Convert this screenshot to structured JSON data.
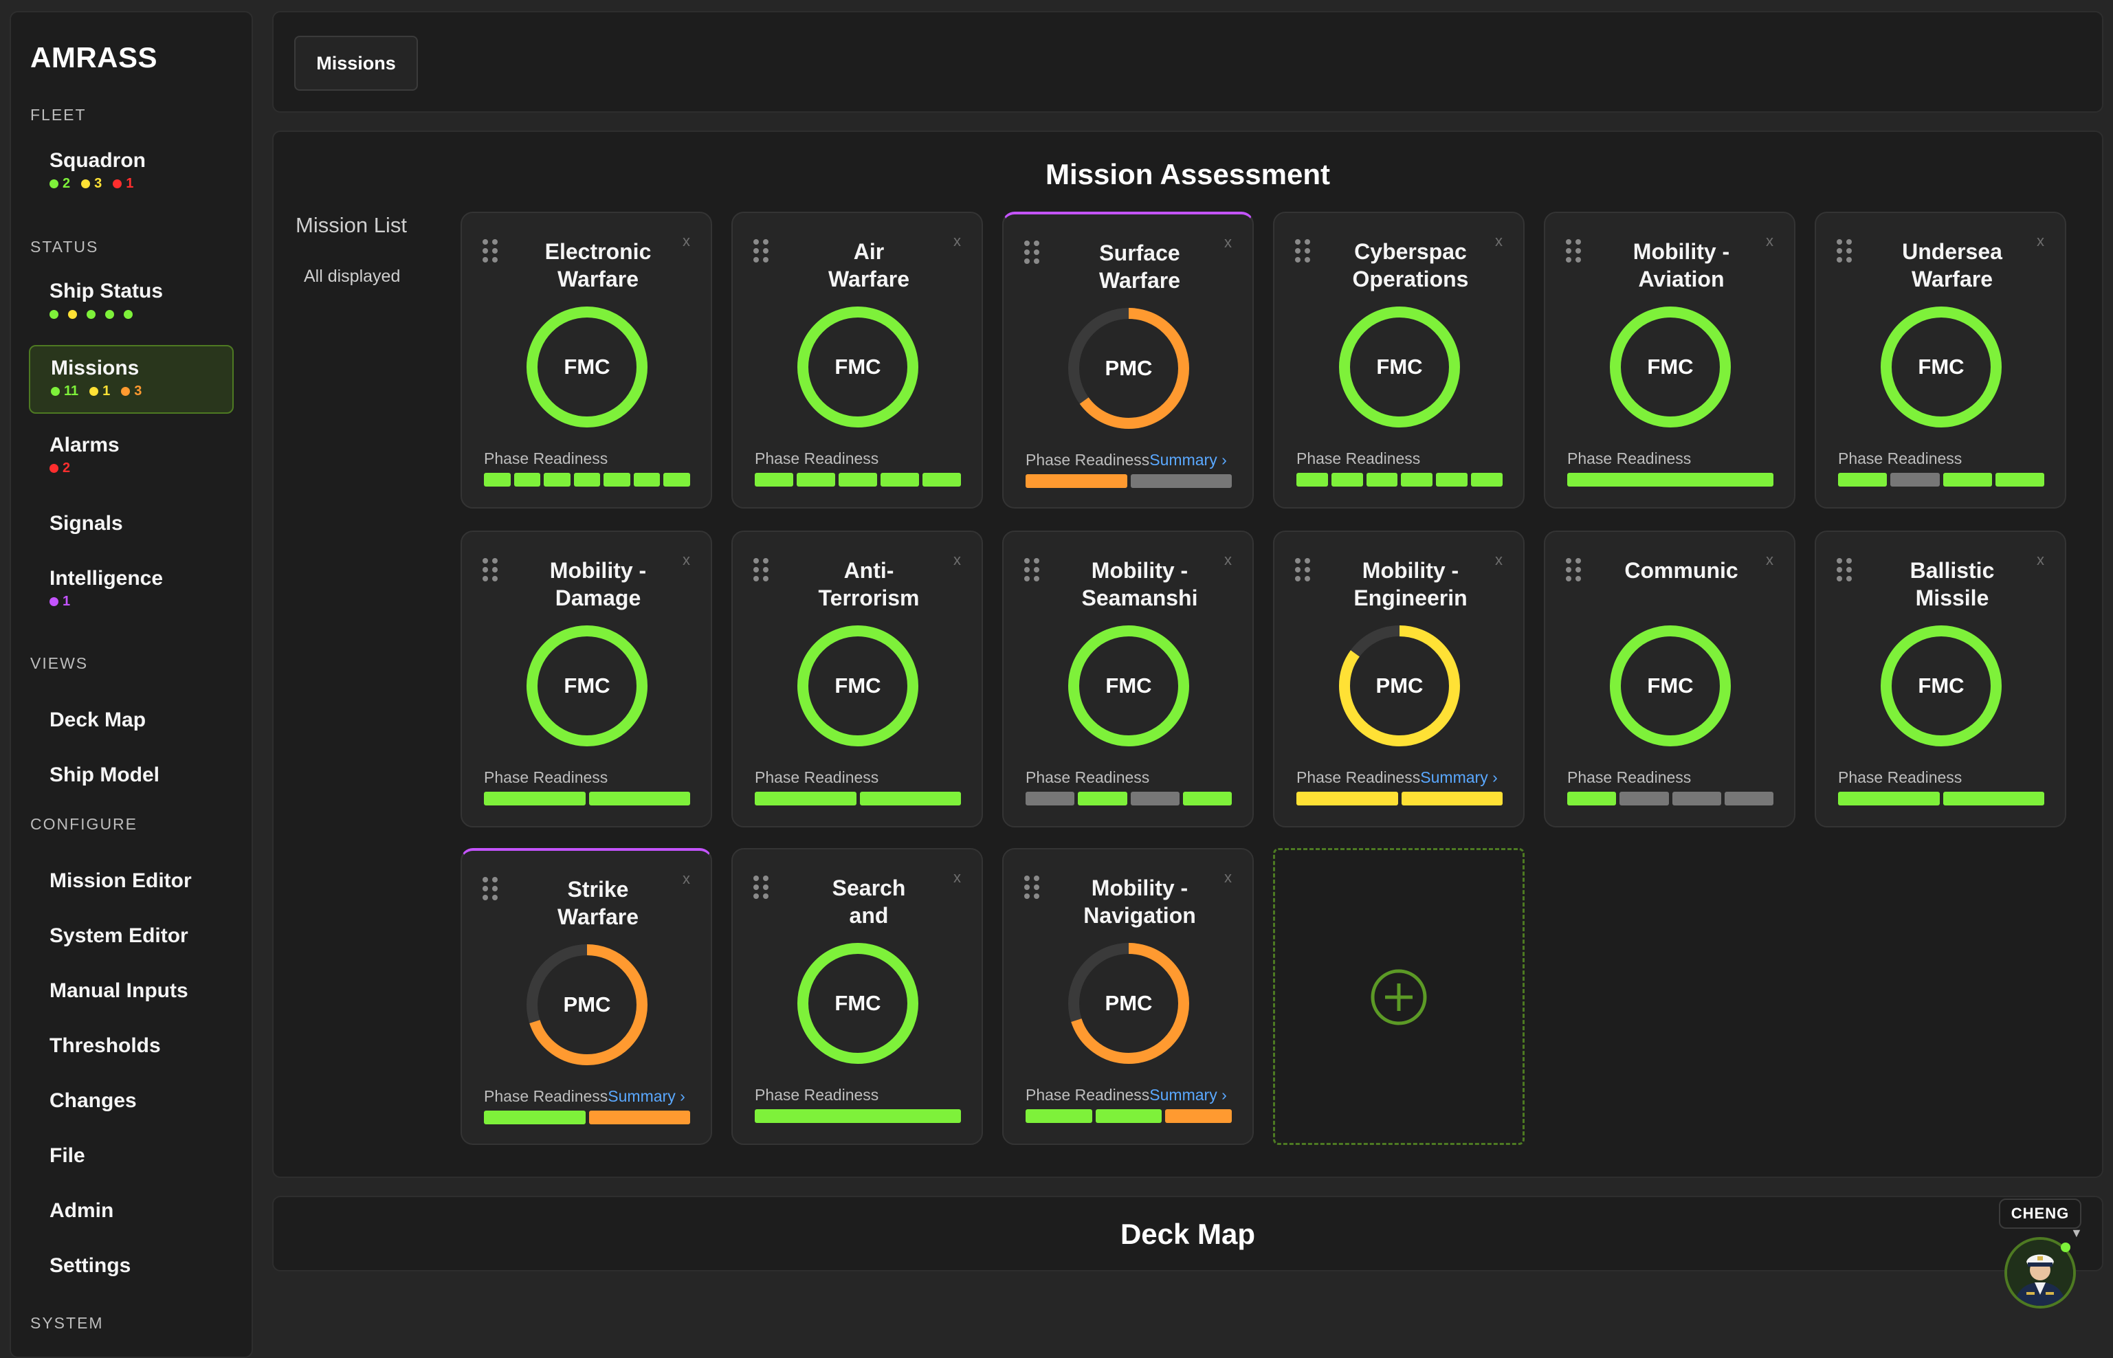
{
  "app": {
    "title": "AMRASS"
  },
  "sidebar": {
    "sections": {
      "fleet": "FLEET",
      "status": "STATUS",
      "views": "VIEWS",
      "configure": "CONFIGURE",
      "system": "SYSTEM"
    },
    "squadron": {
      "label": "Squadron",
      "green": "2",
      "yellow": "3",
      "red": "1"
    },
    "ship_status": {
      "label": "Ship Status"
    },
    "missions": {
      "label": "Missions",
      "green": "11",
      "yellow": "1",
      "orange": "3"
    },
    "alarms": {
      "label": "Alarms",
      "red": "2"
    },
    "signals": {
      "label": "Signals"
    },
    "intelligence": {
      "label": "Intelligence",
      "purple": "1"
    },
    "deck_map": {
      "label": "Deck Map"
    },
    "ship_model": {
      "label": "Ship Model"
    },
    "mission_editor": {
      "label": "Mission Editor"
    },
    "system_editor": {
      "label": "System Editor"
    },
    "manual_inputs": {
      "label": "Manual Inputs"
    },
    "thresholds": {
      "label": "Thresholds"
    },
    "changes": {
      "label": "Changes"
    },
    "file": {
      "label": "File"
    },
    "admin": {
      "label": "Admin"
    },
    "settings": {
      "label": "Settings"
    }
  },
  "topbar": {
    "tab": "Missions"
  },
  "main": {
    "title": "Mission Assessment",
    "mission_list": "Mission List",
    "mission_list_sub": "All displayed",
    "phase_label": "Phase Readiness",
    "summary_label": "Summary ›",
    "close": "x",
    "cards": [
      {
        "title": "Electronic\nWarfare",
        "status": "FMC",
        "ring": "g",
        "ring_value": 1.0,
        "bars": [
          "g",
          "g",
          "g",
          "g",
          "g",
          "g",
          "g"
        ],
        "summary": false,
        "hl": false
      },
      {
        "title": "Air\nWarfare",
        "status": "FMC",
        "ring": "g",
        "ring_value": 1.0,
        "bars": [
          "g",
          "g",
          "g",
          "g",
          "g"
        ],
        "summary": false,
        "hl": false
      },
      {
        "title": "Surface\nWarfare",
        "status": "PMC",
        "ring": "o",
        "ring_value": 0.65,
        "bars": [
          "o",
          "n"
        ],
        "summary": true,
        "hl": true
      },
      {
        "title": "Cyberspac\nOperations",
        "status": "FMC",
        "ring": "g",
        "ring_value": 1.0,
        "bars": [
          "g",
          "g",
          "g",
          "g",
          "g",
          "g"
        ],
        "summary": false,
        "hl": false
      },
      {
        "title": "Mobility -\nAviation",
        "status": "FMC",
        "ring": "g",
        "ring_value": 1.0,
        "bars": [
          "g"
        ],
        "summary": false,
        "hl": false
      },
      {
        "title": "Undersea\nWarfare",
        "status": "FMC",
        "ring": "g",
        "ring_value": 1.0,
        "bars": [
          "g",
          "n",
          "g",
          "g"
        ],
        "summary": false,
        "hl": false
      },
      {
        "title": "Mobility -\nDamage",
        "status": "FMC",
        "ring": "g",
        "ring_value": 1.0,
        "bars": [
          "g",
          "g"
        ],
        "summary": false,
        "hl": false
      },
      {
        "title": "Anti-\nTerrorism",
        "status": "FMC",
        "ring": "g",
        "ring_value": 1.0,
        "bars": [
          "g",
          "g"
        ],
        "summary": false,
        "hl": false
      },
      {
        "title": "Mobility -\nSeamanshi",
        "status": "FMC",
        "ring": "g",
        "ring_value": 1.0,
        "bars": [
          "n",
          "g",
          "n",
          "g"
        ],
        "summary": false,
        "hl": false
      },
      {
        "title": "Mobility -\nEngineerin",
        "status": "PMC",
        "ring": "y",
        "ring_value": 0.85,
        "bars": [
          "y",
          "y"
        ],
        "summary": true,
        "hl": false
      },
      {
        "title": "Communic",
        "status": "FMC",
        "ring": "g",
        "ring_value": 1.0,
        "bars": [
          "g",
          "n",
          "n",
          "n"
        ],
        "summary": false,
        "hl": false
      },
      {
        "title": "Ballistic\nMissile",
        "status": "FMC",
        "ring": "g",
        "ring_value": 1.0,
        "bars": [
          "g",
          "g"
        ],
        "summary": false,
        "hl": false
      },
      {
        "title": "Strike\nWarfare",
        "status": "PMC",
        "ring": "o",
        "ring_value": 0.7,
        "bars": [
          "g",
          "o"
        ],
        "summary": true,
        "hl": true
      },
      {
        "title": "Search\nand",
        "status": "FMC",
        "ring": "g",
        "ring_value": 1.0,
        "bars": [
          "g"
        ],
        "summary": false,
        "hl": false
      },
      {
        "title": "Mobility -\nNavigation",
        "status": "PMC",
        "ring": "o",
        "ring_value": 0.7,
        "bars": [
          "g",
          "g",
          "o"
        ],
        "summary": true,
        "hl": false
      }
    ]
  },
  "deck": {
    "title": "Deck Map"
  },
  "user": {
    "name": "CHENG",
    "caret": "▼"
  },
  "colors": {
    "g": "#7ef13a",
    "o": "#ff9a30",
    "y": "#ffe135",
    "track": "#3a3a3a"
  }
}
